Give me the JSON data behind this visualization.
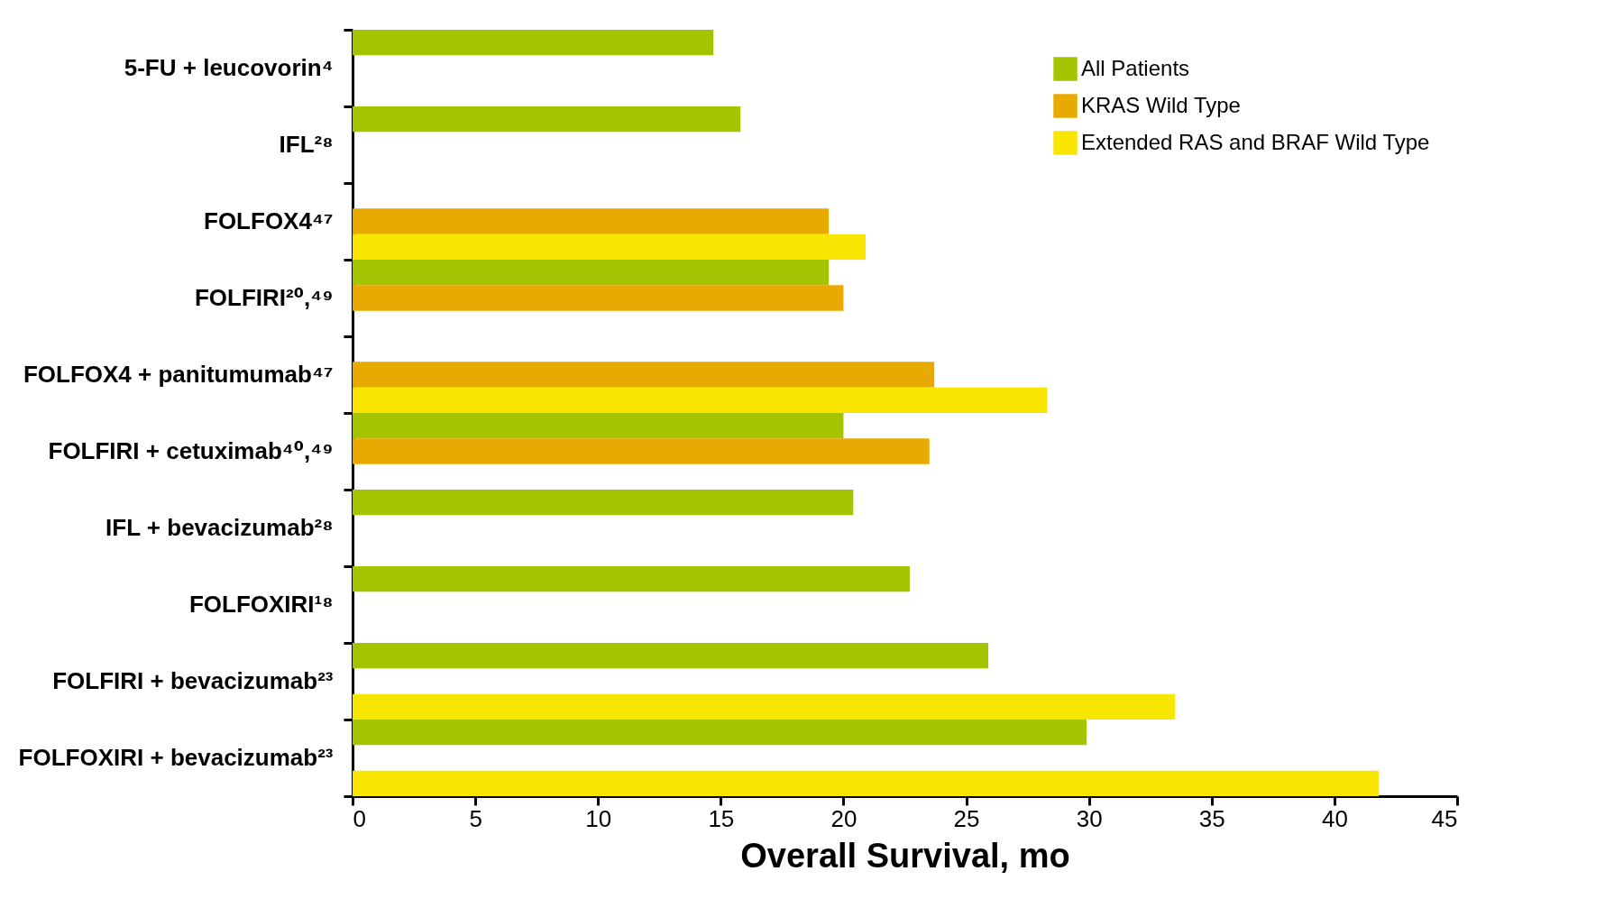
{
  "chart_data": {
    "type": "bar",
    "orientation": "horizontal",
    "xlabel": "Overall Survival, mo",
    "categories": [
      "5-FU + leucovorin⁴",
      "IFL²⁸",
      "FOLFOX4⁴⁷",
      "FOLFIRI²⁰,⁴⁹",
      "FOLFOX4 + panitumumab⁴⁷",
      "FOLFIRI + cetuximab⁴⁰,⁴⁹",
      "IFL + bevacizumab²⁸",
      "FOLFOXIRI¹⁸",
      "FOLFIRI + bevacizumab²³",
      "FOLFOXIRI + bevacizumab²³"
    ],
    "series": [
      {
        "name": "All Patients",
        "color": "#a4c400",
        "values": [
          14.7,
          15.8,
          null,
          19.4,
          null,
          20.0,
          20.4,
          22.7,
          25.9,
          29.9
        ]
      },
      {
        "name": "KRAS Wild Type",
        "color": "#e8a900",
        "values": [
          null,
          null,
          19.4,
          20.0,
          23.7,
          23.5,
          null,
          null,
          null,
          null
        ]
      },
      {
        "name": "Extended RAS and BRAF Wild Type",
        "color": "#f9e600",
        "values": [
          null,
          null,
          20.9,
          null,
          28.3,
          null,
          null,
          null,
          33.5,
          41.8
        ]
      }
    ],
    "xlim": [
      0,
      45
    ],
    "xticks": [
      0,
      5,
      10,
      15,
      20,
      25,
      30,
      35,
      40,
      45
    ],
    "grid": false,
    "legend": "top right"
  }
}
